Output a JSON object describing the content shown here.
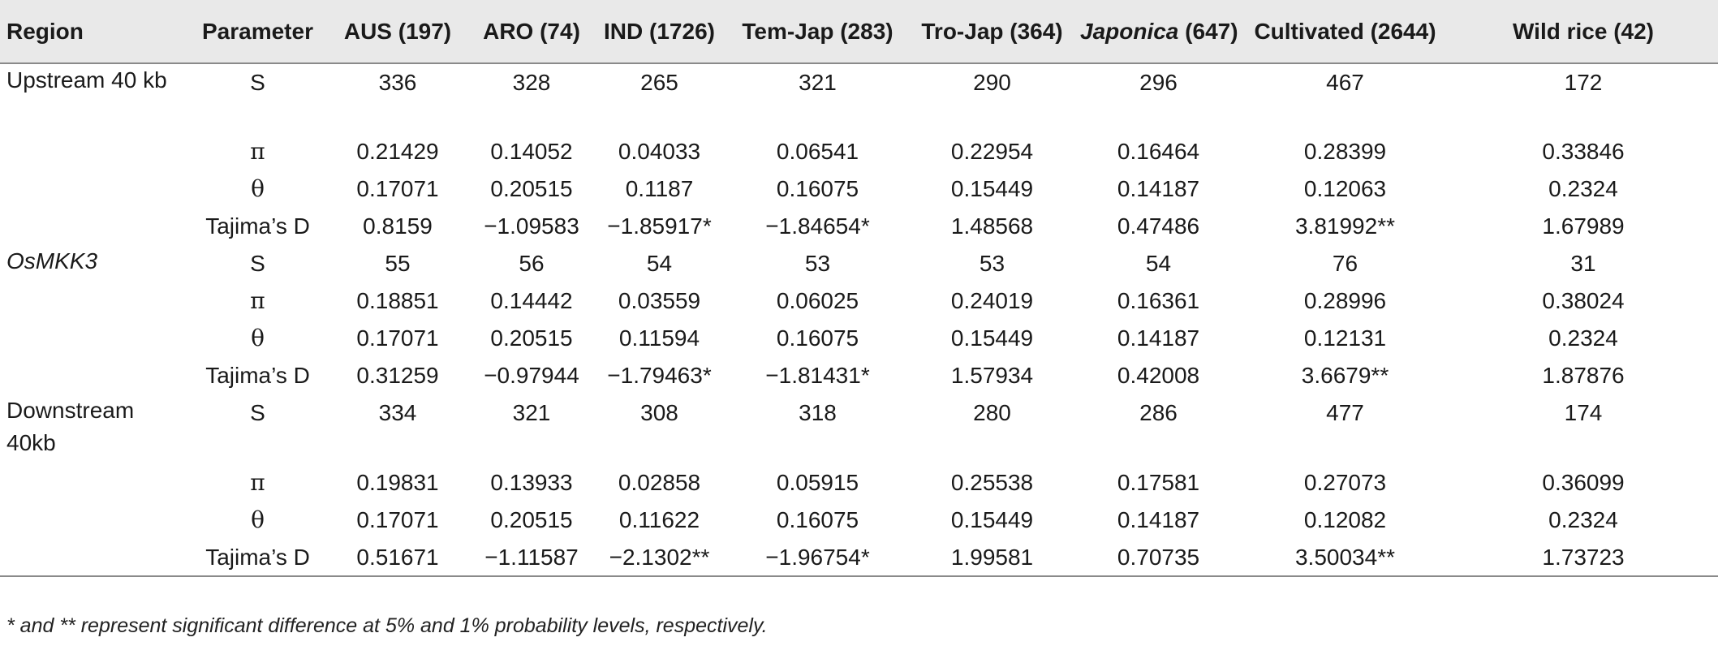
{
  "table": {
    "headers": [
      {
        "text": "Region",
        "italic": false
      },
      {
        "text": "Parameter",
        "italic": false
      },
      {
        "text": "AUS (197)",
        "italic": false
      },
      {
        "text": "ARO (74)",
        "italic": false
      },
      {
        "text": "IND (1726)",
        "italic": false
      },
      {
        "text": "Tem-Jap (283)",
        "italic": false
      },
      {
        "text": "Tro-Jap (364)",
        "italic": false
      },
      {
        "text": "Japonica (647)",
        "italic_part": "Japonica",
        "rest": " (647)"
      },
      {
        "text": "Cultivated (2644)",
        "italic": false
      },
      {
        "text": "Wild rice (42)",
        "italic": false
      }
    ],
    "rows": [
      {
        "region": "Upstream 40 kb",
        "region_italic": false,
        "param": "S",
        "values": [
          "336",
          "328",
          "265",
          "321",
          "290",
          "296",
          "467",
          "172"
        ],
        "tall": true
      },
      {
        "region": "",
        "param": "π",
        "values": [
          "0.21429",
          "0.14052",
          "0.04033",
          "0.06541",
          "0.22954",
          "0.16464",
          "0.28399",
          "0.33846"
        ]
      },
      {
        "region": "",
        "param": "θ",
        "values": [
          "0.17071",
          "0.20515",
          "0.1187",
          "0.16075",
          "0.15449",
          "0.14187",
          "0.12063",
          "0.2324"
        ]
      },
      {
        "region": "",
        "param": "Tajima’s D",
        "values": [
          "0.8159",
          "−1.09583",
          "−1.85917*",
          "−1.84654*",
          "1.48568",
          "0.47486",
          "3.81992**",
          "1.67989"
        ]
      },
      {
        "region": "OsMKK3",
        "region_italic": true,
        "param": "S",
        "values": [
          "55",
          "56",
          "54",
          "53",
          "53",
          "54",
          "76",
          "31"
        ]
      },
      {
        "region": "",
        "param": "π",
        "values": [
          "0.18851",
          "0.14442",
          "0.03559",
          "0.06025",
          "0.24019",
          "0.16361",
          "0.28996",
          "0.38024"
        ]
      },
      {
        "region": "",
        "param": "θ",
        "values": [
          "0.17071",
          "0.20515",
          "0.11594",
          "0.16075",
          "0.15449",
          "0.14187",
          "0.12131",
          "0.2324"
        ]
      },
      {
        "region": "",
        "param": "Tajima’s D",
        "values": [
          "0.31259",
          "−0.97944",
          "−1.79463*",
          "−1.81431*",
          "1.57934",
          "0.42008",
          "3.6679**",
          "1.87876"
        ]
      },
      {
        "region": "Downstream 40kb",
        "region_italic": false,
        "param": "S",
        "values": [
          "334",
          "321",
          "308",
          "318",
          "280",
          "286",
          "477",
          "174"
        ],
        "tall": true
      },
      {
        "region": "",
        "param": "π",
        "values": [
          "0.19831",
          "0.13933",
          "0.02858",
          "0.05915",
          "0.25538",
          "0.17581",
          "0.27073",
          "0.36099"
        ]
      },
      {
        "region": "",
        "param": "θ",
        "values": [
          "0.17071",
          "0.20515",
          "0.11622",
          "0.16075",
          "0.15449",
          "0.14187",
          "0.12082",
          "0.2324"
        ]
      },
      {
        "region": "",
        "param": "Tajima’s D",
        "values": [
          "0.51671",
          "−1.11587",
          "−2.1302**",
          "−1.96754*",
          "1.99581",
          "0.70735",
          "3.50034**",
          "1.73723"
        ]
      }
    ]
  },
  "footnote": "* and ** represent significant difference at 5% and 1% probability levels, respectively."
}
